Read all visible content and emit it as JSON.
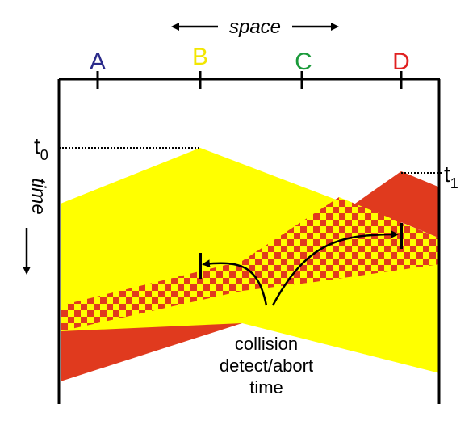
{
  "axis": {
    "space_label": "space",
    "time_label": "time"
  },
  "nodes": [
    {
      "label": "A",
      "color": "#2a2a8a"
    },
    {
      "label": "B",
      "color": "#f2e600"
    },
    {
      "label": "C",
      "color": "#1a9a3a"
    },
    {
      "label": "D",
      "color": "#e02020"
    }
  ],
  "times": {
    "t0_base": "t",
    "t0_sub": "0",
    "t1_base": "t",
    "t1_sub": "1"
  },
  "annotation": {
    "line1": "collision",
    "line2": "detect/abort",
    "line3": "time"
  },
  "colors": {
    "yellow": "#ffff00",
    "red": "#e03a1e",
    "line": "#000000"
  }
}
